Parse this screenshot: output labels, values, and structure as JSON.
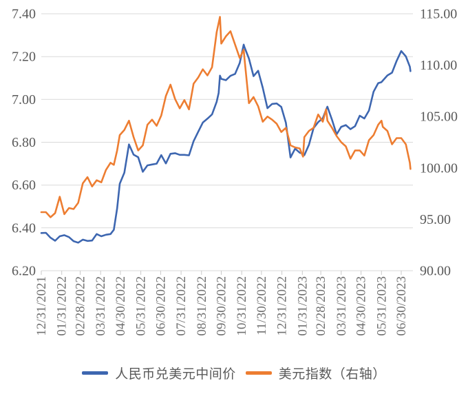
{
  "chart_data": {
    "type": "line",
    "title": "",
    "grid": true,
    "legend_position": "bottom",
    "x_axis": {
      "label_rotation_deg": 90,
      "tick_labels": [
        "12/31/2021",
        "01/31/2022",
        "02/28/2022",
        "03/31/2022",
        "04/30/2022",
        "05/31/2022",
        "06/30/2022",
        "07/31/2022",
        "08/31/2022",
        "09/30/2022",
        "10/31/2022",
        "11/30/2022",
        "12/31/2022",
        "01/31/2023",
        "02/28/2023",
        "03/31/2023",
        "04/30/2023",
        "05/31/2023",
        "06/30/2023"
      ]
    },
    "left_axis": {
      "min": 6.2,
      "max": 7.4,
      "step": 0.2,
      "tick_values": [
        6.2,
        6.4,
        6.6,
        6.8,
        7.0,
        7.2,
        7.4
      ],
      "tick_labels": [
        "6.20",
        "6.40",
        "6.60",
        "6.80",
        "7.00",
        "7.20",
        "7.40"
      ]
    },
    "right_axis": {
      "min": 90,
      "max": 115,
      "step": 5,
      "tick_values": [
        90,
        95,
        100,
        105,
        110,
        115
      ],
      "tick_labels": [
        "90.00",
        "95.00",
        "100.00",
        "105.00",
        "110.00",
        "115.00"
      ]
    },
    "dates": [
      "12/31/2021",
      "01/07/2022",
      "01/14/2022",
      "01/21/2022",
      "01/28/2022",
      "02/04/2022",
      "02/11/2022",
      "02/18/2022",
      "02/25/2022",
      "03/04/2022",
      "03/11/2022",
      "03/18/2022",
      "03/25/2022",
      "04/01/2022",
      "04/08/2022",
      "04/15/2022",
      "04/20/2022",
      "04/25/2022",
      "04/29/2022",
      "05/06/2022",
      "05/13/2022",
      "05/20/2022",
      "05/27/2022",
      "06/03/2022",
      "06/10/2022",
      "06/17/2022",
      "06/24/2022",
      "07/01/2022",
      "07/08/2022",
      "07/15/2022",
      "07/22/2022",
      "07/29/2022",
      "08/05/2022",
      "08/12/2022",
      "08/19/2022",
      "08/26/2022",
      "09/02/2022",
      "09/09/2022",
      "09/16/2022",
      "09/23/2022",
      "09/26/2022",
      "09/28/2022",
      "09/30/2022",
      "10/07/2022",
      "10/14/2022",
      "10/21/2022",
      "10/28/2022",
      "11/03/2022",
      "11/04/2022",
      "11/11/2022",
      "11/18/2022",
      "11/25/2022",
      "12/02/2022",
      "12/09/2022",
      "12/16/2022",
      "12/23/2022",
      "12/30/2022",
      "01/06/2023",
      "01/13/2023",
      "01/20/2023",
      "01/27/2023",
      "02/01/2023",
      "02/03/2023",
      "02/10/2023",
      "02/17/2023",
      "02/24/2023",
      "03/03/2023",
      "03/08/2023",
      "03/10/2023",
      "03/17/2023",
      "03/24/2023",
      "03/31/2023",
      "04/07/2023",
      "04/14/2023",
      "04/21/2023",
      "04/28/2023",
      "05/05/2023",
      "05/12/2023",
      "05/19/2023",
      "05/26/2023",
      "05/31/2023",
      "06/02/2023",
      "06/09/2023",
      "06/16/2023",
      "06/23/2023",
      "06/30/2023",
      "07/07/2023",
      "07/13/2023",
      "07/14/2023"
    ],
    "series": [
      {
        "key": "cny-usd-central-parity",
        "name": "人民币兑美元中间价",
        "axis": "left",
        "color": "#3D66B0",
        "values": [
          6.376,
          6.377,
          6.354,
          6.34,
          6.361,
          6.366,
          6.357,
          6.338,
          6.331,
          6.345,
          6.339,
          6.341,
          6.371,
          6.361,
          6.368,
          6.371,
          6.391,
          6.491,
          6.606,
          6.658,
          6.79,
          6.742,
          6.73,
          6.662,
          6.692,
          6.696,
          6.7,
          6.74,
          6.701,
          6.746,
          6.749,
          6.741,
          6.741,
          6.739,
          6.805,
          6.849,
          6.892,
          6.91,
          6.93,
          6.989,
          7.03,
          7.111,
          7.096,
          7.09,
          7.11,
          7.119,
          7.17,
          7.256,
          7.246,
          7.191,
          7.109,
          7.134,
          7.054,
          6.959,
          6.979,
          6.981,
          6.965,
          6.891,
          6.729,
          6.77,
          6.751,
          6.746,
          6.74,
          6.788,
          6.866,
          6.894,
          6.912,
          6.952,
          6.966,
          6.905,
          6.837,
          6.872,
          6.88,
          6.861,
          6.875,
          6.924,
          6.911,
          6.948,
          7.036,
          7.076,
          7.081,
          7.088,
          7.112,
          7.125,
          7.18,
          7.226,
          7.201,
          7.153,
          7.132
        ]
      },
      {
        "key": "usd-index",
        "name": "美元指数（右轴）",
        "axis": "right",
        "color": "#ED7D31",
        "values": [
          95.7,
          95.7,
          95.2,
          95.6,
          97.2,
          95.5,
          96.1,
          96.0,
          96.6,
          98.5,
          99.1,
          98.2,
          98.8,
          98.6,
          99.8,
          100.5,
          100.3,
          101.7,
          103.2,
          103.7,
          104.6,
          103.0,
          101.7,
          102.2,
          104.2,
          104.7,
          104.1,
          105.1,
          107.0,
          108.1,
          106.7,
          105.8,
          106.6,
          105.7,
          108.2,
          108.8,
          109.6,
          109.0,
          109.8,
          113.2,
          114.1,
          114.7,
          112.1,
          112.8,
          113.3,
          112.0,
          110.7,
          111.5,
          110.8,
          106.3,
          106.9,
          106.0,
          104.5,
          105.0,
          104.7,
          104.3,
          103.5,
          103.9,
          102.2,
          102.0,
          101.9,
          101.1,
          103.0,
          103.6,
          103.9,
          105.2,
          104.5,
          105.7,
          104.6,
          103.9,
          103.1,
          102.5,
          102.1,
          100.9,
          101.7,
          101.7,
          101.2,
          102.7,
          103.2,
          104.2,
          104.6,
          104.0,
          103.6,
          102.3,
          102.9,
          102.9,
          102.3,
          100.5,
          99.9
        ]
      }
    ],
    "style": {
      "gridline_color": "#D9D9D9",
      "tick_color": "#C9C9C9",
      "axis_label_color": "#595959",
      "x_label_color": "#6F6F6F"
    }
  },
  "legend": {
    "items": [
      {
        "label": "人民币兑美元中间价",
        "color": "#3D66B0"
      },
      {
        "label": "美元指数（右轴）",
        "color": "#ED7D31"
      }
    ]
  }
}
